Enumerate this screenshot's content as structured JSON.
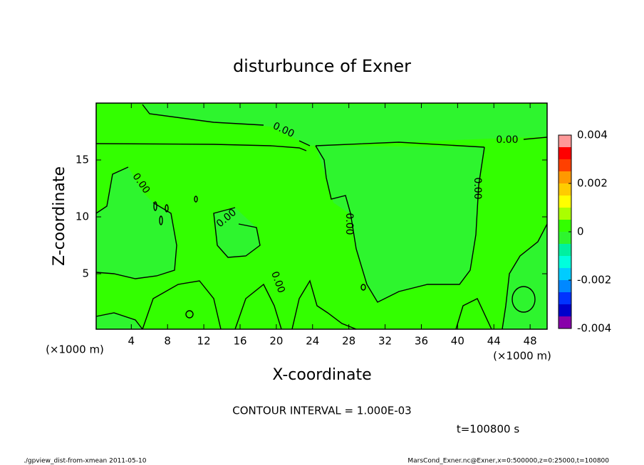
{
  "chart_data": {
    "type": "contour",
    "title": "disturbunce of Exner",
    "x_label": "X-coordinate",
    "y_label": "Z-coordinate",
    "x_unit": "(×1000 m)",
    "y_unit": "(×1000 m)",
    "xlim": [
      0.125,
      49.875
    ],
    "ylim": [
      0.125,
      20
    ],
    "xticks": [
      4,
      8,
      12,
      16,
      20,
      24,
      28,
      32,
      36,
      40,
      44,
      48
    ],
    "yticks": [
      5,
      10,
      15
    ],
    "colorbar": {
      "levels": [
        -0.004,
        -0.0035,
        -0.003,
        -0.0025,
        -0.002,
        -0.0015,
        -0.001,
        -0.0005,
        0,
        0.0005,
        0.001,
        0.0015,
        0.002,
        0.0025,
        0.003,
        0.0035,
        0.004
      ],
      "colors": [
        "#8800aa",
        "#0000cc",
        "#0033ff",
        "#0088ff",
        "#00ccff",
        "#00ffdd",
        "#00f0a0",
        "#2ef52e",
        "#33ff00",
        "#aaff00",
        "#ffff00",
        "#ffcc00",
        "#ff9900",
        "#ff4000",
        "#ff0000",
        "#ff9999"
      ],
      "ticks": [
        -0.004,
        -0.002,
        0,
        0.002,
        0.004
      ]
    },
    "contour_labels": [
      {
        "value": 0,
        "label": "0.00"
      },
      {
        "value": 0,
        "label": "0.00"
      },
      {
        "value": 0,
        "label": "0.00"
      },
      {
        "value": 0,
        "label": "0.00"
      },
      {
        "value": 0,
        "label": "0.00"
      },
      {
        "value": 0,
        "label": "0.00"
      },
      {
        "value": 0,
        "label": "0.00"
      }
    ],
    "annotation": "CONTOUR INTERVAL = 1.000E-03",
    "time_label": "t=100800 s",
    "footer_left": "./gpview_dist-from-xmean  2011-05-10",
    "footer_right": "MarsCond_Exner.nc@Exner,x=0:500000,z=0:25000,t=100800"
  }
}
